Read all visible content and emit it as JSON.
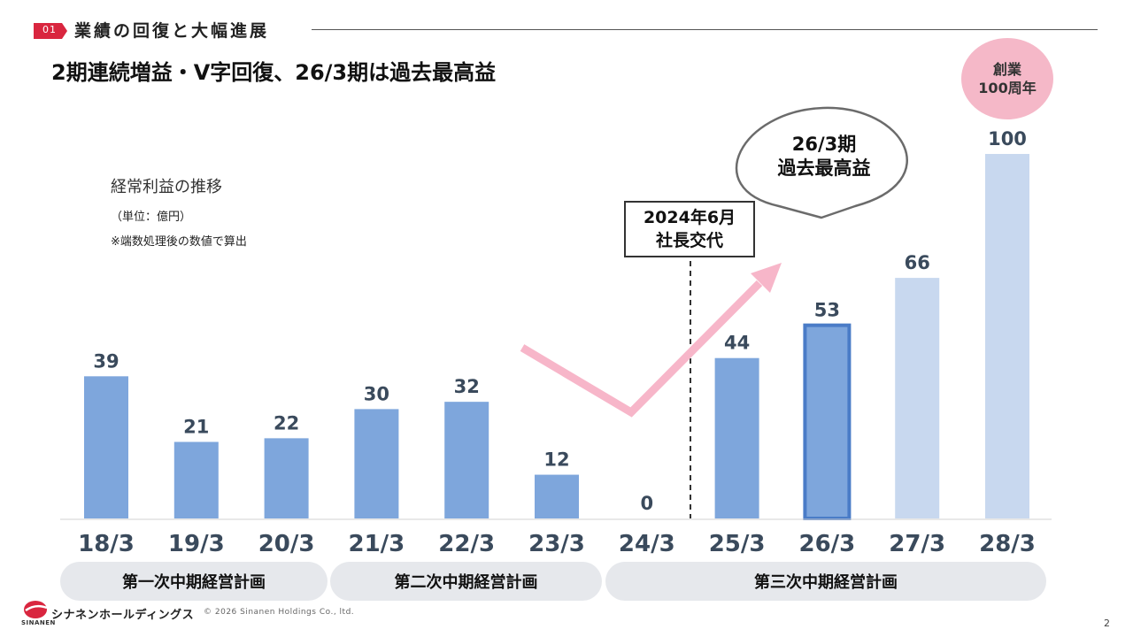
{
  "header": {
    "section_number": "01",
    "section_title": "業績の回復と大幅進展",
    "headline": "2期連続増益・V字回復、26/3期は過去最高益"
  },
  "chart_data": {
    "type": "bar",
    "title": "経常利益の推移",
    "unit_note": "（単位：億円）",
    "rounding_note": "※端数処理後の数値で算出",
    "categories": [
      "18/3",
      "19/3",
      "20/3",
      "21/3",
      "22/3",
      "23/3",
      "24/3",
      "25/3",
      "26/3",
      "27/3",
      "28/3"
    ],
    "values": [
      39,
      21,
      22,
      30,
      32,
      12,
      0,
      44,
      53,
      66,
      100
    ],
    "value_labels": [
      "39",
      "21",
      "22",
      "30",
      "32",
      "12",
      "0",
      "44",
      "53",
      "66",
      "100"
    ],
    "ylim": [
      0,
      100
    ],
    "grid": false,
    "highlighted_category": "26/3",
    "plan_categories": [
      "27/3",
      "28/3"
    ],
    "divider_between": [
      "24/3",
      "25/3"
    ],
    "colors": {
      "actual": "#7ea6dc",
      "highlight_border": "#4a7cc7",
      "plan": "#c8d8ef",
      "trend_arrow": "#f7b6c9",
      "divider": "#333333"
    }
  },
  "annotations": {
    "ceo_change": {
      "line1": "2024年6月",
      "line2": "社長交代"
    },
    "record_bubble": {
      "line1": "26/3期",
      "line2": "過去最高益"
    },
    "centennial_badge": {
      "line1": "創業",
      "line2": "100周年"
    }
  },
  "plans": [
    {
      "label": "第一次中期経営計画"
    },
    {
      "label": "第二次中期経営計画"
    },
    {
      "label": "第三次中期経営計画"
    }
  ],
  "footer": {
    "logo_text": "シナネンホールディングス",
    "logo_sub": "SINANEN",
    "copyright": "© 2026 Sinanen Holdings Co., ltd.",
    "page_number": "2"
  }
}
